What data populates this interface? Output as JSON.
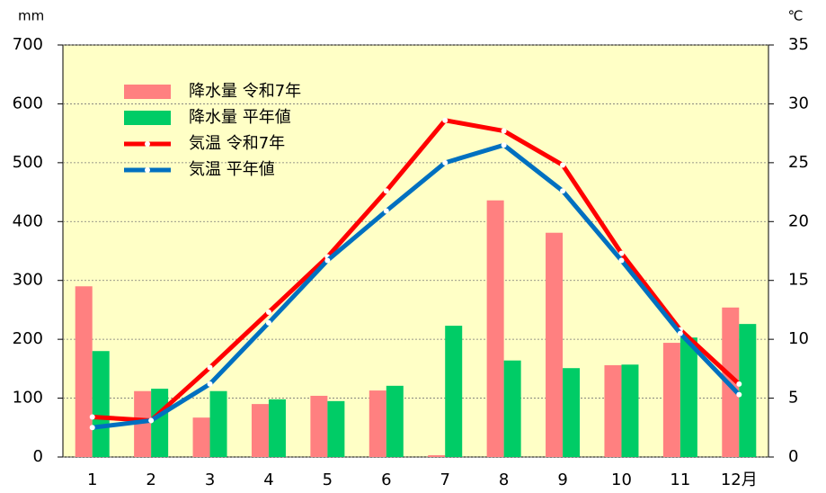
{
  "chart_data": {
    "type": "bar",
    "y_unit": "mm",
    "y2_unit": "℃",
    "categories": [
      "1",
      "2",
      "3",
      "4",
      "5",
      "6",
      "7",
      "8",
      "9",
      "10",
      "11",
      "12月"
    ],
    "series": [
      {
        "name": "降水量 令和7年",
        "type": "bar",
        "color": "#ff8080",
        "values": [
          290,
          112,
          67,
          90,
          104,
          113,
          3,
          436,
          381,
          156,
          194,
          254
        ]
      },
      {
        "name": "降水量 平年値",
        "type": "bar",
        "color": "#00cc66",
        "values": [
          180,
          116,
          112,
          98,
          95,
          121,
          223,
          164,
          151,
          157,
          203,
          226
        ]
      },
      {
        "name": "気温 令和7年",
        "type": "line",
        "axis": "y2",
        "color": "#ff0000",
        "values": [
          3.4,
          3.1,
          7.6,
          12.3,
          17.0,
          22.6,
          28.6,
          27.7,
          24.8,
          17.3,
          10.8,
          6.2
        ]
      },
      {
        "name": "気温 平年値",
        "type": "line",
        "axis": "y2",
        "color": "#0070c0",
        "values": [
          2.5,
          3.1,
          6.2,
          11.4,
          16.7,
          20.9,
          25.0,
          26.5,
          22.6,
          16.7,
          10.5,
          5.3
        ]
      }
    ],
    "ylim": [
      0,
      700
    ],
    "yticks": [
      0,
      100,
      200,
      300,
      400,
      500,
      600,
      700
    ],
    "y2lim": [
      0,
      35
    ],
    "y2ticks": [
      0,
      5,
      10,
      15,
      20,
      25,
      30,
      35
    ],
    "grid": true,
    "legend": "upper left"
  }
}
